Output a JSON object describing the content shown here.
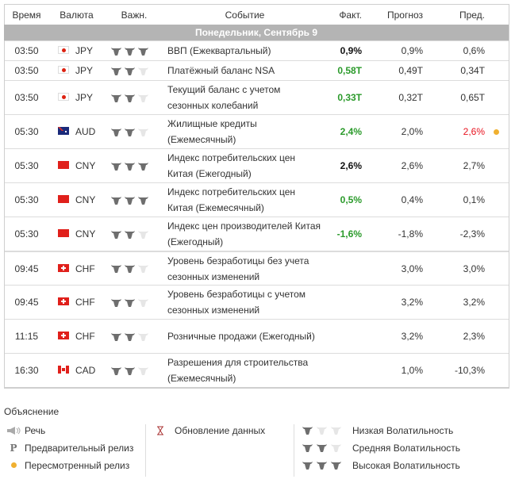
{
  "headers": {
    "time": "Время",
    "currency": "Валюта",
    "importance": "Важн.",
    "event": "Событие",
    "actual": "Факт.",
    "forecast": "Прогноз",
    "previous": "Пред."
  },
  "date_band": "Понедельник, Сентябрь 9",
  "colors": {
    "green": "#2a9a2a",
    "red": "#e8121e",
    "dot": "#f0b030",
    "bull_on": "#6e6e6e",
    "bull_off": "#e6e6e6"
  },
  "rows": [
    {
      "time": "03:50",
      "currency": "JPY",
      "flag": "jp",
      "bulls": 3,
      "event": "ВВП (Ежеквартальный)",
      "actual": "0,9%",
      "actual_color": "black",
      "forecast": "0,9%",
      "previous": "0,6%"
    },
    {
      "time": "03:50",
      "currency": "JPY",
      "flag": "jp",
      "bulls": 2,
      "event": "Платёжный баланс NSA",
      "actual": "0,58T",
      "actual_color": "green",
      "forecast": "0,49T",
      "previous": "0,34T"
    },
    {
      "time": "03:50",
      "currency": "JPY",
      "flag": "jp",
      "bulls": 2,
      "event": "Текущий баланс с учетом сезонных колебаний",
      "actual": "0,33T",
      "actual_color": "green",
      "forecast": "0,32T",
      "previous": "0,65T"
    },
    {
      "time": "05:30",
      "currency": "AUD",
      "flag": "au",
      "bulls": 2,
      "event": "Жилищные кредиты (Ежемесячный)",
      "actual": "2,4%",
      "actual_color": "green",
      "forecast": "2,0%",
      "previous": "2,6%",
      "previous_color": "red",
      "revised": true
    },
    {
      "time": "05:30",
      "currency": "CNY",
      "flag": "cn",
      "bulls": 3,
      "event": "Индекс потребительских цен Китая (Ежегодный)",
      "actual": "2,6%",
      "actual_color": "black",
      "forecast": "2,6%",
      "previous": "2,7%"
    },
    {
      "time": "05:30",
      "currency": "CNY",
      "flag": "cn",
      "bulls": 3,
      "event": "Индекс потребительских цен Китая (Ежемесячный)",
      "actual": "0,5%",
      "actual_color": "green",
      "forecast": "0,4%",
      "previous": "0,1%"
    },
    {
      "time": "05:30",
      "currency": "CNY",
      "flag": "cn",
      "bulls": 2,
      "event": "Индекс цен производителей Китая (Ежегодный)",
      "actual": "-1,6%",
      "actual_color": "green",
      "forecast": "-1,8%",
      "previous": "-2,3%"
    },
    {
      "time": "09:45",
      "currency": "CHF",
      "flag": "ch",
      "bulls": 2,
      "event": "Уровень безработицы без учета сезонных изменений",
      "actual": "",
      "forecast": "3,0%",
      "previous": "3,0%",
      "sep": true
    },
    {
      "time": "09:45",
      "currency": "CHF",
      "flag": "ch",
      "bulls": 2,
      "event": "Уровень безработицы с учетом сезонных изменений",
      "actual": "",
      "forecast": "3,2%",
      "previous": "3,2%"
    },
    {
      "time": "11:15",
      "currency": "CHF",
      "flag": "ch",
      "bulls": 2,
      "event": "Розничные продажи (Ежегодный)",
      "actual": "",
      "forecast": "3,2%",
      "previous": "2,3%"
    },
    {
      "time": "16:30",
      "currency": "CAD",
      "flag": "ca",
      "bulls": 2,
      "event": "Разрешения для строительства (Ежемесячный)",
      "actual": "",
      "forecast": "1,0%",
      "previous": "-10,3%"
    }
  ],
  "legend": {
    "title": "Объяснение",
    "speech": "Речь",
    "preliminary": "Предварительный релиз",
    "revised": "Пересмотренный релиз",
    "data_update": "Обновление данных",
    "low": "Низкая Волатильность",
    "medium": "Средняя Волатильность",
    "high": "Высокая Волатильность",
    "p_glyph": "P"
  }
}
